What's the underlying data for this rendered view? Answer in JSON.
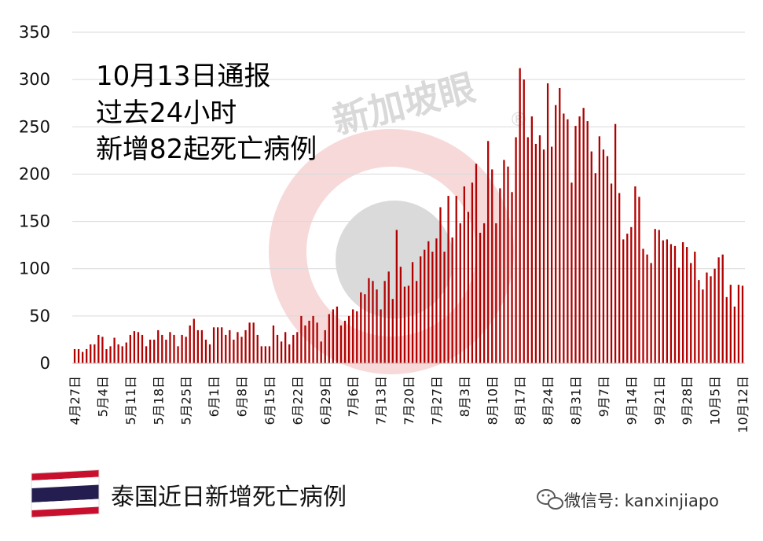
{
  "chart_data": {
    "type": "bar",
    "annotation": [
      "10月13日通报",
      "过去24小时",
      "新增82起死亡病例"
    ],
    "ylim": [
      0,
      350
    ],
    "yticks": [
      0,
      50,
      100,
      150,
      200,
      250,
      300,
      350
    ],
    "x_tick_labels": [
      "4月27日",
      "5月4日",
      "5月11日",
      "5月18日",
      "5月25日",
      "6月1日",
      "6月8日",
      "6月15日",
      "6月22日",
      "6月29日",
      "7月6日",
      "7月13日",
      "7月20日",
      "7月27日",
      "8月3日",
      "8月10日",
      "8月17日",
      "8月24日",
      "8月31日",
      "9月7日",
      "9月14日",
      "9月21日",
      "9月28日",
      "10月5日",
      "10月12日"
    ],
    "grid": true,
    "bar_color": "#b00000",
    "start_date": "4月27日",
    "end_date": "10月12日",
    "values": [
      15,
      15,
      12,
      15,
      20,
      20,
      30,
      28,
      15,
      18,
      27,
      20,
      18,
      22,
      30,
      34,
      33,
      30,
      18,
      25,
      25,
      35,
      30,
      25,
      33,
      30,
      18,
      30,
      28,
      40,
      47,
      35,
      35,
      25,
      20,
      38,
      38,
      38,
      30,
      35,
      25,
      33,
      28,
      35,
      43,
      43,
      30,
      18,
      18,
      18,
      40,
      30,
      23,
      33,
      20,
      30,
      33,
      50,
      40,
      45,
      50,
      43,
      23,
      35,
      52,
      57,
      60,
      40,
      45,
      50,
      57,
      55,
      75,
      73,
      90,
      87,
      78,
      57,
      87,
      97,
      68,
      141,
      102,
      81,
      82,
      107,
      87,
      113,
      120,
      129,
      118,
      132,
      165,
      118,
      177,
      133,
      177,
      148,
      187,
      160,
      191,
      211,
      138,
      148,
      235,
      205,
      148,
      185,
      215,
      208,
      181,
      239,
      312,
      300,
      239,
      261,
      232,
      241,
      226,
      296,
      229,
      273,
      291,
      264,
      258,
      191,
      251,
      261,
      270,
      256,
      224,
      201,
      240,
      226,
      219,
      190,
      253,
      180,
      131,
      137,
      144,
      187,
      176,
      121,
      115,
      106,
      142,
      141,
      130,
      131,
      126,
      124,
      101,
      128,
      123,
      106,
      118,
      88,
      78,
      96,
      92,
      100,
      112,
      115,
      70,
      83,
      60,
      83,
      82
    ]
  },
  "footer": {
    "title": "泰国近日新增死亡病例",
    "wechat": "微信号: kanxinjiapo",
    "flag_colors": [
      "#c8102e",
      "#ffffff",
      "#241d4f"
    ]
  },
  "watermark": {
    "text": "新加坡眼",
    "mark": "®",
    "ring_color": "#f6c9c9",
    "disc_color": "#cfcfcf"
  }
}
